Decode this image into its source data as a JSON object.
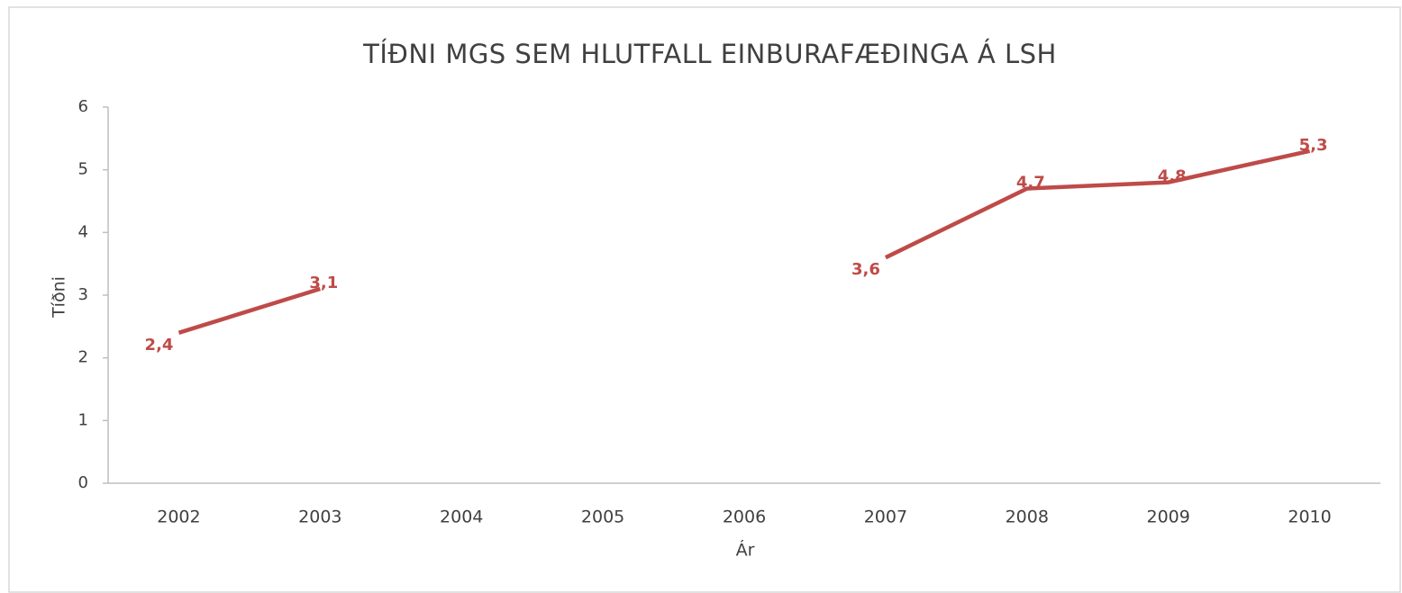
{
  "chart_data": {
    "type": "line",
    "title": "TÍÐNI MGS SEM HLUTFALL EINBURAFÆÐINGA Á LSH",
    "x_label": "Ár",
    "y_label": "Tíðni",
    "categories": [
      "2002",
      "2003",
      "2004",
      "2005",
      "2006",
      "2007",
      "2008",
      "2009",
      "2010"
    ],
    "series": [
      {
        "name": "Tíðni",
        "color": "#be4b48",
        "values": [
          2.4,
          3.1,
          null,
          null,
          null,
          3.6,
          4.7,
          4.8,
          5.3
        ],
        "value_labels": [
          "2,4",
          "3,1",
          null,
          null,
          null,
          "3,6",
          "4,7",
          "4,8",
          "5,3"
        ]
      }
    ],
    "ylim": [
      0,
      6
    ],
    "yticks": [
      0,
      1,
      2,
      3,
      4,
      5,
      6
    ],
    "grid": false
  }
}
